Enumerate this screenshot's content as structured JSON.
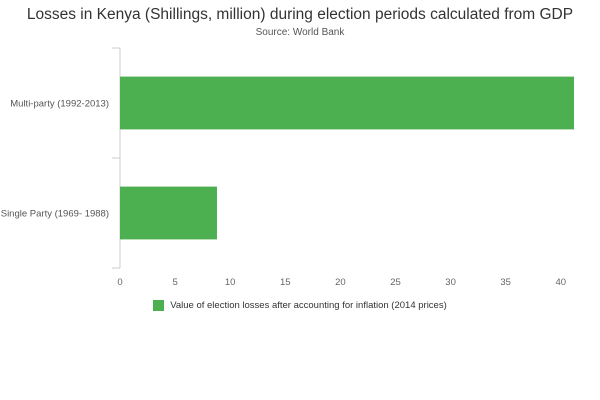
{
  "chart_data": {
    "type": "bar",
    "orientation": "horizontal",
    "title": "Losses in Kenya (Shillings, million) during election periods calculated from GDP",
    "subtitle": "Source: World Bank",
    "categories": [
      "Multi-party (1992-2013)",
      "Single Party (1969- 1988)"
    ],
    "series": [
      {
        "name": "Value of election losses after accounting for inflation (2014 prices)",
        "values": [
          41.2,
          8.8
        ],
        "color": "#4caf50"
      }
    ],
    "xlim": [
      0,
      41.2
    ],
    "xticks": [
      0,
      5,
      10,
      15,
      20,
      25,
      30,
      35,
      40
    ],
    "grid": false,
    "legend": "bottom-center"
  }
}
